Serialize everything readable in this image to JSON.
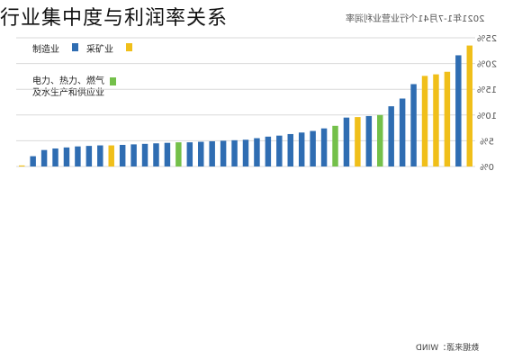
{
  "page": {
    "title": "行业集中度与利润率关系",
    "subtitle": "2021年1-7月41个行业营业利润率",
    "source": "数据来源：WIND"
  },
  "colors": {
    "制造业": "#2f6db2",
    "采矿业": "#f0bf1a",
    "电力热力燃气及水生产和供应业": "#74c04a",
    "grid": "#d9d9d9",
    "axis_text": "#555555"
  },
  "chart_data": {
    "type": "bar",
    "title": "",
    "subtitle": "2021年1-7月41个行业营业利润率",
    "xlabel": "",
    "ylabel": "",
    "y_tick_labels": [
      "0%",
      "5%",
      "10%",
      "15%",
      "20%",
      "25%"
    ],
    "y_ticks": [
      0,
      5,
      10,
      15,
      20,
      25
    ],
    "ylim": [
      0,
      25
    ],
    "y_axis_side": "right",
    "grid": true,
    "legend_position": "top-left",
    "legend": [
      {
        "label": "制造业",
        "color": "#2f6db2"
      },
      {
        "label": "采矿业",
        "color": "#f0bf1a"
      },
      {
        "label": "电力、热力、燃气及水生产和供应业",
        "color": "#74c04a"
      }
    ],
    "bars": [
      {
        "value": 0.2,
        "group": "采矿业"
      },
      {
        "value": 2.0,
        "group": "制造业"
      },
      {
        "value": 3.2,
        "group": "制造业"
      },
      {
        "value": 3.5,
        "group": "制造业"
      },
      {
        "value": 3.7,
        "group": "制造业"
      },
      {
        "value": 3.9,
        "group": "制造业"
      },
      {
        "value": 4.0,
        "group": "制造业"
      },
      {
        "value": 4.1,
        "group": "制造业"
      },
      {
        "value": 4.1,
        "group": "采矿业"
      },
      {
        "value": 4.2,
        "group": "制造业"
      },
      {
        "value": 4.3,
        "group": "制造业"
      },
      {
        "value": 4.4,
        "group": "制造业"
      },
      {
        "value": 4.5,
        "group": "制造业"
      },
      {
        "value": 4.6,
        "group": "制造业"
      },
      {
        "value": 4.7,
        "group": "电力、热力、燃气及水生产和供应业"
      },
      {
        "value": 4.7,
        "group": "制造业"
      },
      {
        "value": 4.8,
        "group": "制造业"
      },
      {
        "value": 4.9,
        "group": "制造业"
      },
      {
        "value": 5.0,
        "group": "制造业"
      },
      {
        "value": 5.1,
        "group": "制造业"
      },
      {
        "value": 5.2,
        "group": "制造业"
      },
      {
        "value": 5.5,
        "group": "制造业"
      },
      {
        "value": 5.8,
        "group": "制造业"
      },
      {
        "value": 6.0,
        "group": "制造业"
      },
      {
        "value": 6.3,
        "group": "制造业"
      },
      {
        "value": 6.6,
        "group": "制造业"
      },
      {
        "value": 6.9,
        "group": "制造业"
      },
      {
        "value": 7.4,
        "group": "制造业"
      },
      {
        "value": 7.9,
        "group": "电力、热力、燃气及水生产和供应业"
      },
      {
        "value": 9.5,
        "group": "制造业"
      },
      {
        "value": 9.6,
        "group": "采矿业"
      },
      {
        "value": 9.8,
        "group": "制造业"
      },
      {
        "value": 10.0,
        "group": "电力、热力、燃气及水生产和供应业"
      },
      {
        "value": 11.7,
        "group": "制造业"
      },
      {
        "value": 13.2,
        "group": "制造业"
      },
      {
        "value": 16.0,
        "group": "制造业"
      },
      {
        "value": 17.6,
        "group": "采矿业"
      },
      {
        "value": 17.9,
        "group": "采矿业"
      },
      {
        "value": 18.4,
        "group": "采矿业"
      },
      {
        "value": 21.6,
        "group": "制造业"
      },
      {
        "value": 23.5,
        "group": "采矿业"
      }
    ]
  }
}
